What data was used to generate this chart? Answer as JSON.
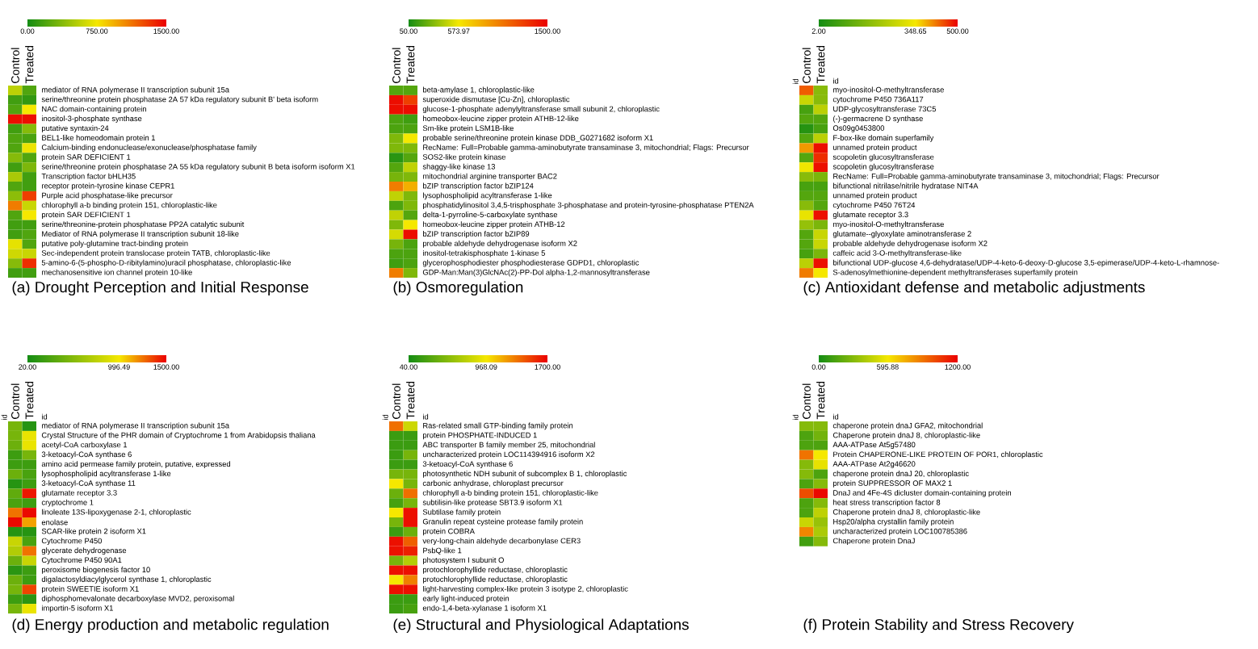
{
  "chart_data": [
    {
      "type": "heatmap",
      "title": "(a) Drought Perception and Initial Response",
      "categories": [
        "Control",
        "Treated"
      ],
      "y_categories": [
        "mediator of RNA polymerase II transcription subunit 15a",
        "serine/threonine protein phosphatase 2A 57 kDa regulatory subunit B' beta isoform",
        "NAC domain-containing protein",
        "inositol-3-phosphate synthase",
        "putative syntaxin-24",
        "BEL1-like homeodomain protein 1",
        "Calcium-binding endonuclease/exonuclease/phosphatase family",
        "protein SAR DEFICIENT 1",
        "serine/threonine protein phosphatase 2A 55 kDa regulatory subunit B beta isoform isoform X1",
        "Transcription factor bHLH35",
        "receptor protein-tyrosine kinase CEPR1",
        "Purple acid phosphatase-like precursor",
        "chlorophyll a-b binding protein 151, chloroplastic-like",
        "protein SAR DEFICIENT 1",
        "serine/threonine-protein phosphatase PP2A catalytic subunit",
        "Mediator of RNA polymerase II transcription subunit 18-like",
        "putative poly-glutamine tract-binding protein",
        "Sec-independent protein translocase protein TATB, chloroplastic-like",
        "5-amino-6-(5-phospho-D-ribitylamino)uracil phosphatase, chloroplastic-like",
        "mechanosensitive ion channel protein 10-like"
      ],
      "cells": [
        [
          560,
          200
        ],
        [
          150,
          100
        ],
        [
          200,
          750
        ],
        [
          1450,
          1450
        ],
        [
          150,
          380
        ],
        [
          200,
          180
        ],
        [
          200,
          720
        ],
        [
          380,
          200
        ],
        [
          150,
          350
        ],
        [
          500,
          150
        ],
        [
          200,
          150
        ],
        [
          400,
          1300
        ],
        [
          1100,
          600
        ],
        [
          200,
          750
        ],
        [
          150,
          150
        ],
        [
          150,
          200
        ],
        [
          700,
          200
        ],
        [
          620,
          600
        ],
        [
          380,
          1350
        ],
        [
          150,
          150
        ]
      ],
      "clim": [
        0,
        1500
      ],
      "cticks": [
        {
          "value": 0,
          "label": "0.00"
        },
        {
          "value": 750,
          "label": "750.00"
        },
        {
          "value": 1500,
          "label": "1500.00"
        }
      ]
    },
    {
      "type": "heatmap",
      "title": "(b) Osmoregulation",
      "categories": [
        "Control",
        "Treated"
      ],
      "y_categories": [
        "beta-amylase 1, chloroplastic-like",
        "superoxide dismutase [Cu-Zn], chloroplastic",
        "glucose-1-phosphate adenylyltransferase small subunit 2, chloroplastic",
        "homeobox-leucine zipper protein ATHB-12-like",
        "Sm-like protein LSM1B-like",
        "probable serine/threonine protein kinase DDB_G0271682 isoform X1",
        "RecName: Full=Probable gamma-aminobutyrate transaminase 3, mitochondrial; Flags: Precursor",
        "SOS2-like protein kinase",
        "shaggy-like kinase 13",
        "mitochondrial arginine transporter BAC2",
        "bZIP transcription factor bZIP124",
        "lysophospholipid acyltransferase 1-like",
        "phosphatidylinositol 3,4,5-trisphosphate 3-phosphatase and protein-tyrosine-phosphatase PTEN2A",
        "delta-1-pyrroline-5-carboxylate synthase",
        "homeobox-leucine zipper protein ATHB-12",
        "bZIP transcription factor bZIP89",
        "probable aldehyde dehydrogenase isoform X2",
        "inositol-tetrakisphosphate 1-kinase 5",
        "glycerophosphodiester phosphodiesterase GDPD1, chloroplastic",
        "GDP-Man:Man(3)GlcNAc(2)-PP-Dol alpha-1,2-mannosyltransferase"
      ],
      "cells": [
        [
          200,
          200
        ],
        [
          1450,
          1250
        ],
        [
          1450,
          1450
        ],
        [
          180,
          150
        ],
        [
          180,
          180
        ],
        [
          300,
          574
        ],
        [
          300,
          300
        ],
        [
          100,
          200
        ],
        [
          200,
          450
        ],
        [
          280,
          300
        ],
        [
          1000,
          800
        ],
        [
          450,
          300
        ],
        [
          180,
          300
        ],
        [
          450,
          200
        ],
        [
          300,
          574
        ],
        [
          500,
          1450
        ],
        [
          280,
          180
        ],
        [
          180,
          180
        ],
        [
          150,
          180
        ],
        [
          1000,
          300
        ]
      ],
      "clim": [
        50,
        1500
      ],
      "cticks": [
        {
          "value": 50,
          "label": "50.00"
        },
        {
          "value": 573.97,
          "label": "573.97"
        },
        {
          "value": 1500,
          "label": "1500.00"
        }
      ]
    },
    {
      "type": "heatmap",
      "title": "(c) Antioxidant defense and metabolic adjustments",
      "categories": [
        "Control",
        "Treated"
      ],
      "y_categories": [
        "myo-inositol-O-methyltransferase",
        "cytochrome P450 736A117",
        "UDP-glycosyltransferase 73C5",
        "(-)-germacrene D synthase",
        "Os09g0453800",
        "F-box-like domain superfamily",
        "unnamed protein product",
        "scopoletin glucosyltransferase",
        "scopoletin glucosyltransferase",
        "RecName: Full=Probable gamma-aminobutyrate transaminase 3, mitochondrial; Flags: Precursor",
        "bifunctional nitrilase/nitrile hydratase NIT4A",
        "unnamed protein product",
        "cytochrome P450 76T24",
        "glutamate receptor 3.3",
        "myo-inositol-O-methyltransferase",
        "glutamate--glyoxylate aminotransferase 2",
        "probable aldehyde dehydrogenase isoform X2",
        "caffeic acid 3-O-methyltransferase-like",
        "bifunctional UDP-glucose 4,6-dehydratase/UDP-4-keto-6-deoxy-D-glucose 3,5-epimerase/UDP-4-keto-L-rhamnose-",
        "S-adenosylmethionine-dependent methyltransferases superfamily protein"
      ],
      "cells": [
        [
          440,
          180
        ],
        [
          280,
          180
        ],
        [
          80,
          260
        ],
        [
          100,
          100
        ],
        [
          30,
          80
        ],
        [
          100,
          260
        ],
        [
          400,
          490
        ],
        [
          100,
          470
        ],
        [
          340,
          490
        ],
        [
          180,
          160
        ],
        [
          80,
          80
        ],
        [
          100,
          100
        ],
        [
          180,
          100
        ],
        [
          330,
          490
        ],
        [
          200,
          160
        ],
        [
          100,
          280
        ],
        [
          100,
          280
        ],
        [
          80,
          160
        ],
        [
          260,
          490
        ],
        [
          420,
          349
        ]
      ],
      "clim": [
        2,
        500
      ],
      "cticks": [
        {
          "value": 2,
          "label": "2.00"
        },
        {
          "value": 348.65,
          "label": "348.65"
        },
        {
          "value": 500,
          "label": "500.00"
        }
      ],
      "annotations": [
        "id",
        "id"
      ]
    },
    {
      "type": "heatmap",
      "title": "(d) Energy production and metabolic regulation",
      "categories": [
        "Control",
        "Treated"
      ],
      "y_categories": [
        "mediator of RNA polymerase II transcription subunit 15a",
        "Crystal Structure of the PHR domain of Cryptochrome 1 from Arabidopsis thaliana",
        "acetyl-CoA carboxylase 1",
        "3-ketoacyl-CoA synthase 6",
        "amino acid permease family protein, putative, expressed",
        "lysophospholipid acyltransferase 1-like",
        "3-ketoacyl-CoA synthase 11",
        "glutamate receptor 3.3",
        "cryptochrome 1",
        "linoleate 13S-lipoxygenase 2-1, chloroplastic",
        "enolase",
        "SCAR-like protein 2 isoform X1",
        "Cytochrome P450",
        "glycerate dehydrogenase",
        "Cytochrome P450 90A1",
        "peroxisome biogenesis factor 10",
        "digalactosyldiacylglycerol synthase 1, chloroplastic",
        "protein SWEETIE isoform X1",
        "diphosphomevalonate decarboxylase MVD2, peroxisomal",
        "importin-5 isoform X1"
      ],
      "cells": [
        [
          450,
          100
        ],
        [
          450,
          950
        ],
        [
          400,
          950
        ],
        [
          200,
          450
        ],
        [
          200,
          200
        ],
        [
          400,
          250
        ],
        [
          100,
          200
        ],
        [
          350,
          1450
        ],
        [
          250,
          200
        ],
        [
          1250,
          1480
        ],
        [
          1480,
          1150
        ],
        [
          100,
          100
        ],
        [
          800,
          250
        ],
        [
          700,
          1250
        ],
        [
          400,
          800
        ],
        [
          120,
          200
        ],
        [
          400,
          200
        ],
        [
          450,
          1350
        ],
        [
          200,
          120
        ],
        [
          450,
          950
        ]
      ],
      "clim": [
        20,
        1500
      ],
      "cticks": [
        {
          "value": 20,
          "label": "20.00"
        },
        {
          "value": 996.49,
          "label": "996.49"
        },
        {
          "value": 1500,
          "label": "1500.00"
        }
      ],
      "annotations": [
        "id",
        "id"
      ]
    },
    {
      "type": "heatmap",
      "title": "(e) Structural and Physiological Adaptations",
      "categories": [
        "Control",
        "Treated"
      ],
      "y_categories": [
        "Ras-related small GTP-binding family protein",
        "protein PHOSPHATE-INDUCED 1",
        "ABC transporter B family member 25, mitochondrial",
        "uncharacterized protein LOC114394916 isoform X2",
        "3-ketoacyl-CoA synthase 6",
        "photosynthetic NDH subunit of subcomplex B 1, chloroplastic",
        "carbonic anhydrase, chloroplast precursor",
        "chlorophyll a-b binding protein 151, chloroplastic-like",
        "subtilisin-like protease SBT3.9 isoform X1",
        "Subtilase family protein",
        "Granulin repeat cysteine protease family protein",
        "protein COBRA",
        "very-long-chain aldehyde decarbonylase CER3",
        "PsbQ-like 1",
        "photosystem I subunit O",
        "protochlorophyllide reductase, chloroplastic",
        "protochlorophyllide reductase, chloroplastic",
        "light-harvesting complex-like protein 3 isotype 2, chloroplastic",
        "early light-induced protein",
        "endo-1,4-beta-xylanase 1 isoform X1"
      ],
      "cells": [
        [
          1350,
          800
        ],
        [
          200,
          200
        ],
        [
          200,
          200
        ],
        [
          200,
          450
        ],
        [
          200,
          200
        ],
        [
          450,
          450
        ],
        [
          968,
          450
        ],
        [
          400,
          1350
        ],
        [
          250,
          450
        ],
        [
          968,
          1650
        ],
        [
          450,
          1650
        ],
        [
          200,
          400
        ],
        [
          1650,
          1400
        ],
        [
          1650,
          1600
        ],
        [
          450,
          700
        ],
        [
          1650,
          1650
        ],
        [
          968,
          1300
        ],
        [
          1650,
          1650
        ],
        [
          200,
          200
        ],
        [
          200,
          250
        ]
      ],
      "clim": [
        40,
        1700
      ],
      "cticks": [
        {
          "value": 40,
          "label": "40.00"
        },
        {
          "value": 968.09,
          "label": "968.09"
        },
        {
          "value": 1700,
          "label": "1700.00"
        }
      ],
      "annotations": [
        "id",
        "id"
      ]
    },
    {
      "type": "heatmap",
      "title": "(f) Protein Stability and Stress Recovery",
      "categories": [
        "Control",
        "Treated"
      ],
      "y_categories": [
        "chaperone protein dnaJ GFA2, mitochondrial",
        "Chaperone protein dnaJ 8, chloroplastic-like",
        "AAA-ATPase At5g57480",
        "Protein CHAPERONE-LIKE PROTEIN OF POR1, chloroplastic",
        "AAA-ATPase At2g46620",
        "chaperone protein dnaJ 20, chloroplastic",
        "protein SUPPRESSOR OF MAX2 1",
        "DnaJ and 4Fe-4S dicluster domain-containing protein",
        "heat stress transcription factor 8",
        "Chaperone protein dnaJ 8, chloroplastic-like",
        "Hsp20/alpha crystallin family protein",
        "uncharacterized protein LOC100785386",
        "Chaperone protein DnaJ"
      ],
      "cells": [
        [
          300,
          300
        ],
        [
          150,
          250
        ],
        [
          150,
          150
        ],
        [
          900,
          596
        ],
        [
          300,
          560
        ],
        [
          300,
          150
        ],
        [
          150,
          300
        ],
        [
          1000,
          1180
        ],
        [
          150,
          300
        ],
        [
          150,
          450
        ],
        [
          480,
          350
        ],
        [
          850,
          400
        ],
        [
          120,
          300
        ]
      ],
      "clim": [
        0,
        1200
      ],
      "cticks": [
        {
          "value": 0,
          "label": "0.00"
        },
        {
          "value": 595.88,
          "label": "595.88"
        },
        {
          "value": 1200,
          "label": "1200.00"
        }
      ],
      "annotations": [
        "id",
        "id"
      ]
    }
  ]
}
